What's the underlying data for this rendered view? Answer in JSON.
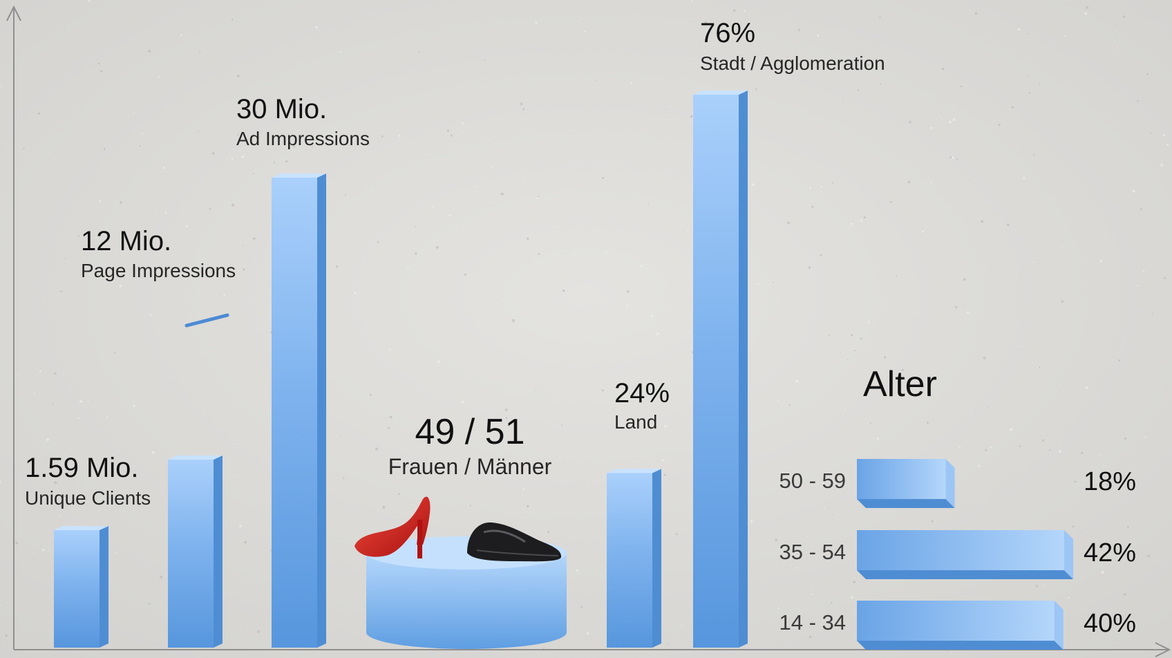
{
  "colors": {
    "background": "#dddcd9",
    "bar_light": "#aad0fb",
    "bar_mid": "#7fb3ee",
    "bar_dark": "#5796dd",
    "bar_side": "#4f8dd3",
    "axis": "#8f8f8f",
    "text": "#111111",
    "label": "#262626",
    "shoe_red": "#d81c1c",
    "shoe_black": "#1d1d1f"
  },
  "chart_data": [
    {
      "type": "bar",
      "categories": [
        "Unique Clients",
        "Page Impressions",
        "Ad Impressions"
      ],
      "values": [
        1.59,
        12,
        30
      ],
      "value_labels": [
        "1.59 Mio.",
        "12 Mio.",
        "30 Mio."
      ],
      "unit": "Mio.",
      "grid": false
    },
    {
      "type": "pie",
      "title": "Frauen / Männer",
      "value_label": "49 / 51",
      "categories": [
        "Frauen",
        "Männer"
      ],
      "values": [
        49,
        51
      ],
      "icons": [
        "red-high-heel-icon",
        "black-oxford-shoe-icon"
      ]
    },
    {
      "type": "bar",
      "categories": [
        "Land",
        "Stadt / Agglomeration"
      ],
      "values": [
        24,
        76
      ],
      "value_labels": [
        "24%",
        "76%"
      ],
      "unit": "%",
      "grid": false
    },
    {
      "type": "bar",
      "orientation": "horizontal",
      "title": "Alter",
      "categories": [
        "50 - 59",
        "35 - 54",
        "14 - 34"
      ],
      "values": [
        18,
        42,
        40
      ],
      "value_labels": [
        "18%",
        "42%",
        "40%"
      ],
      "unit": "%",
      "grid": false
    }
  ]
}
